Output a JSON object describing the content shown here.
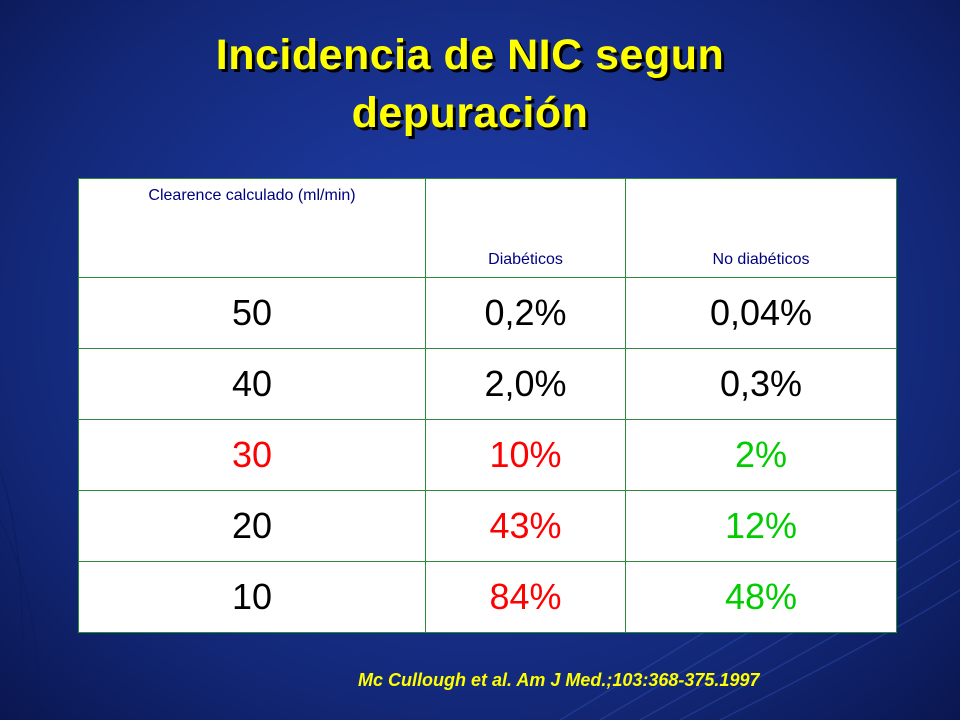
{
  "slide": {
    "title_line1": "Incidencia de NIC segun",
    "title_line2": "depuración",
    "citation": "Mc Cullough et al. Am J Med.;103:368-375.1997"
  },
  "table": {
    "headers": [
      "Clearence calculado (ml/min)",
      "Diabéticos",
      "No diabéticos"
    ],
    "rows": [
      {
        "clearance": "50",
        "diabeticos": "0,2%",
        "no_diabeticos": "0,04%"
      },
      {
        "clearance": "40",
        "diabeticos": "2,0%",
        "no_diabeticos": "0,3%"
      },
      {
        "clearance": "30",
        "diabeticos": "10%",
        "no_diabeticos": "2%"
      },
      {
        "clearance": "20",
        "diabeticos": "43%",
        "no_diabeticos": "12%"
      },
      {
        "clearance": "10",
        "diabeticos": "84%",
        "no_diabeticos": "48%"
      }
    ]
  },
  "colors": {
    "title": "#ffff00",
    "header_text": "#000080",
    "default_text": "#000000",
    "highlight_red": "#ff0000",
    "highlight_green": "#00cc00",
    "cell_border": "#2e8b3a",
    "background": "#1a3596"
  }
}
